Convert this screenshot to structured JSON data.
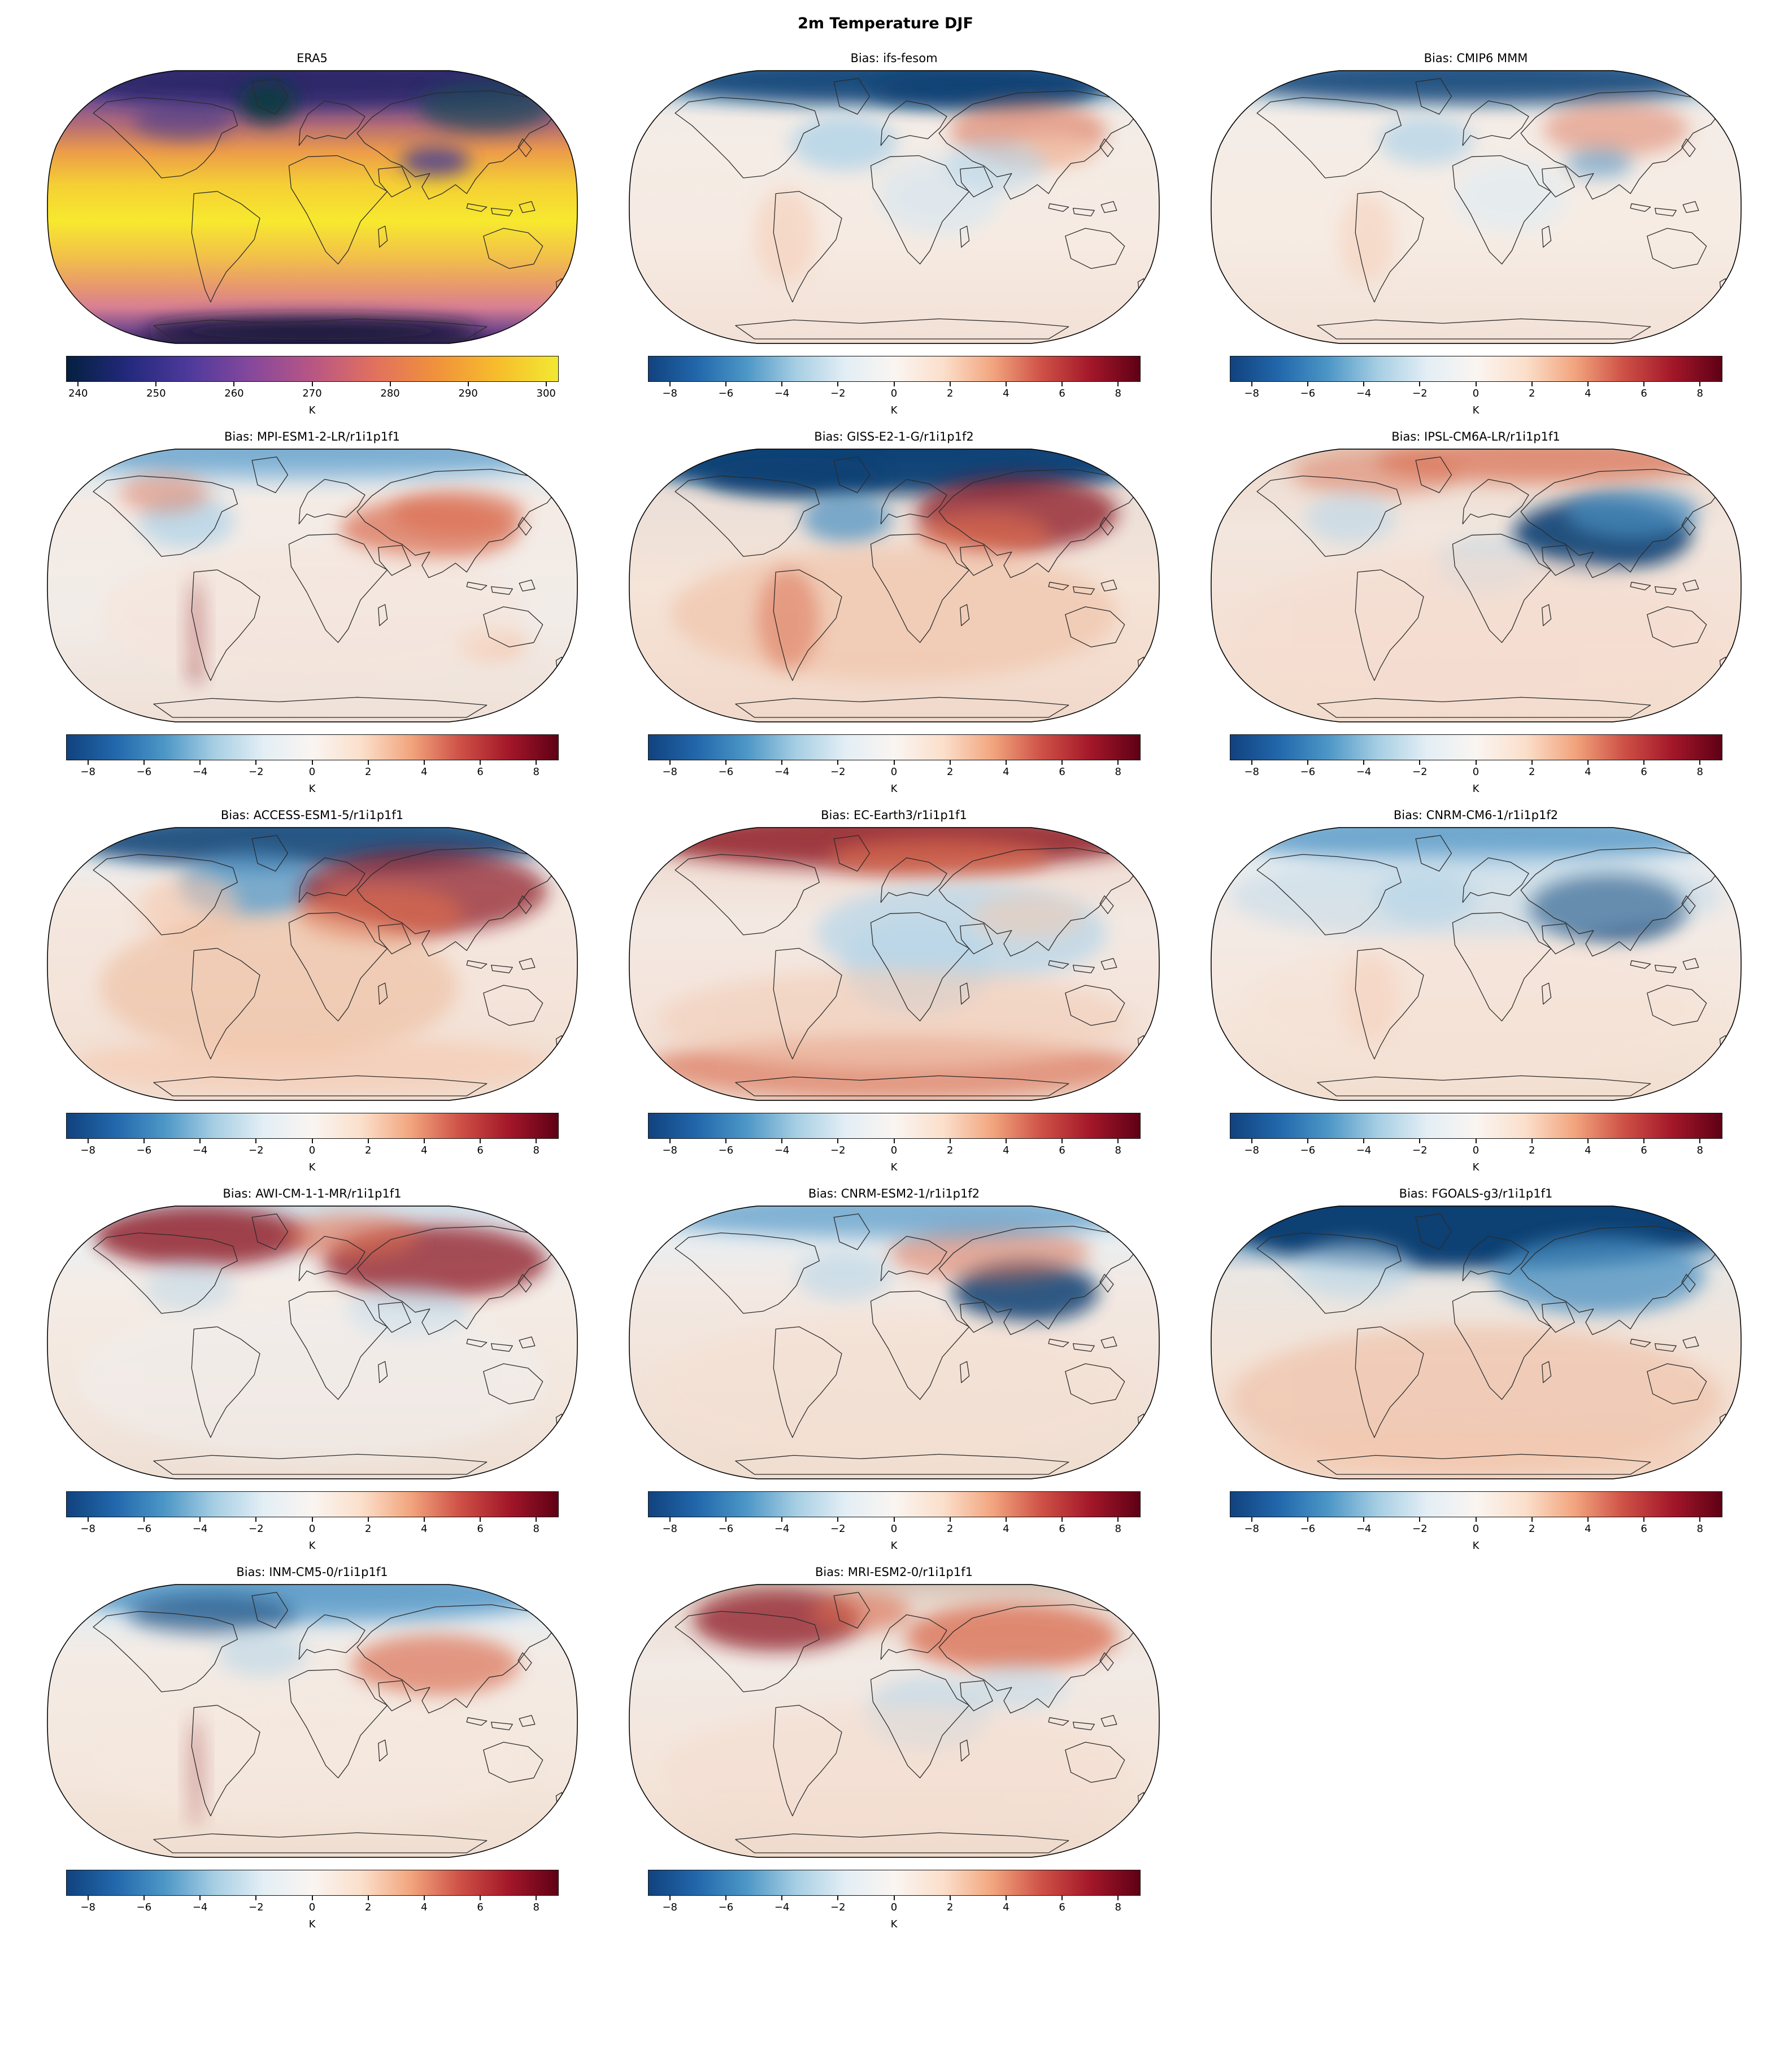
{
  "figure": {
    "title": "2m Temperature DJF"
  },
  "colormaps": {
    "thermal": [
      "#052040",
      "#23297c",
      "#4e3a9c",
      "#86489c",
      "#b85684",
      "#e1705f",
      "#f0913c",
      "#f7bc2c",
      "#f2e932"
    ],
    "rdbu_r": [
      "#11427e",
      "#2268ac",
      "#4d97c7",
      "#a6cee3",
      "#e3eef5",
      "#faf5f1",
      "#fbdfcb",
      "#f2a57e",
      "#ce5146",
      "#a31729",
      "#5f0015"
    ]
  },
  "panels": [
    {
      "id": "era5",
      "title": "ERA5",
      "type": "reference",
      "colorbar": {
        "colormap": "thermal",
        "ticks": [
          "240",
          "250",
          "260",
          "270",
          "280",
          "290",
          "300"
        ],
        "label": "K",
        "inset_pct": 2.5
      }
    },
    {
      "id": "ifs-fesom",
      "title": "Bias: ifs-fesom",
      "type": "bias",
      "colorbar": {
        "colormap": "rdbu_r",
        "ticks": [
          "−8",
          "−6",
          "−4",
          "−2",
          "0",
          "2",
          "4",
          "6",
          "8"
        ],
        "label": "K",
        "inset_pct": 4.5
      }
    },
    {
      "id": "cmip6-mmm",
      "title": "Bias: CMIP6 MMM",
      "type": "bias",
      "colorbar": {
        "colormap": "rdbu_r",
        "ticks": [
          "−8",
          "−6",
          "−4",
          "−2",
          "0",
          "2",
          "4",
          "6",
          "8"
        ],
        "label": "K",
        "inset_pct": 4.5
      }
    },
    {
      "id": "mpi",
      "title": "Bias: MPI-ESM1-2-LR/r1i1p1f1",
      "type": "bias",
      "colorbar": {
        "colormap": "rdbu_r",
        "ticks": [
          "−8",
          "−6",
          "−4",
          "−2",
          "0",
          "2",
          "4",
          "6",
          "8"
        ],
        "label": "K",
        "inset_pct": 4.5
      }
    },
    {
      "id": "giss",
      "title": "Bias: GISS-E2-1-G/r1i1p1f2",
      "type": "bias",
      "colorbar": {
        "colormap": "rdbu_r",
        "ticks": [
          "−8",
          "−6",
          "−4",
          "−2",
          "0",
          "2",
          "4",
          "6",
          "8"
        ],
        "label": "K",
        "inset_pct": 4.5
      }
    },
    {
      "id": "ipsl",
      "title": "Bias: IPSL-CM6A-LR/r1i1p1f1",
      "type": "bias",
      "colorbar": {
        "colormap": "rdbu_r",
        "ticks": [
          "−8",
          "−6",
          "−4",
          "−2",
          "0",
          "2",
          "4",
          "6",
          "8"
        ],
        "label": "K",
        "inset_pct": 4.5
      }
    },
    {
      "id": "access",
      "title": "Bias: ACCESS-ESM1-5/r1i1p1f1",
      "type": "bias",
      "colorbar": {
        "colormap": "rdbu_r",
        "ticks": [
          "−8",
          "−6",
          "−4",
          "−2",
          "0",
          "2",
          "4",
          "6",
          "8"
        ],
        "label": "K",
        "inset_pct": 4.5
      }
    },
    {
      "id": "ecearth",
      "title": "Bias: EC-Earth3/r1i1p1f1",
      "type": "bias",
      "colorbar": {
        "colormap": "rdbu_r",
        "ticks": [
          "−8",
          "−6",
          "−4",
          "−2",
          "0",
          "2",
          "4",
          "6",
          "8"
        ],
        "label": "K",
        "inset_pct": 4.5
      }
    },
    {
      "id": "cnrm-cm6",
      "title": "Bias: CNRM-CM6-1/r1i1p1f2",
      "type": "bias",
      "colorbar": {
        "colormap": "rdbu_r",
        "ticks": [
          "−8",
          "−6",
          "−4",
          "−2",
          "0",
          "2",
          "4",
          "6",
          "8"
        ],
        "label": "K",
        "inset_pct": 4.5
      }
    },
    {
      "id": "awi",
      "title": "Bias: AWI-CM-1-1-MR/r1i1p1f1",
      "type": "bias",
      "colorbar": {
        "colormap": "rdbu_r",
        "ticks": [
          "−8",
          "−6",
          "−4",
          "−2",
          "0",
          "2",
          "4",
          "6",
          "8"
        ],
        "label": "K",
        "inset_pct": 4.5
      }
    },
    {
      "id": "cnrm-esm2",
      "title": "Bias: CNRM-ESM2-1/r1i1p1f2",
      "type": "bias",
      "colorbar": {
        "colormap": "rdbu_r",
        "ticks": [
          "−8",
          "−6",
          "−4",
          "−2",
          "0",
          "2",
          "4",
          "6",
          "8"
        ],
        "label": "K",
        "inset_pct": 4.5
      }
    },
    {
      "id": "fgoals",
      "title": "Bias: FGOALS-g3/r1i1p1f1",
      "type": "bias",
      "colorbar": {
        "colormap": "rdbu_r",
        "ticks": [
          "−8",
          "−6",
          "−4",
          "−2",
          "0",
          "2",
          "4",
          "6",
          "8"
        ],
        "label": "K",
        "inset_pct": 4.5
      }
    },
    {
      "id": "inm",
      "title": "Bias: INM-CM5-0/r1i1p1f1",
      "type": "bias",
      "colorbar": {
        "colormap": "rdbu_r",
        "ticks": [
          "−8",
          "−6",
          "−4",
          "−2",
          "0",
          "2",
          "4",
          "6",
          "8"
        ],
        "label": "K",
        "inset_pct": 4.5
      }
    },
    {
      "id": "mri",
      "title": "Bias: MRI-ESM2-0/r1i1p1f1",
      "type": "bias",
      "colorbar": {
        "colormap": "rdbu_r",
        "ticks": [
          "−8",
          "−6",
          "−4",
          "−2",
          "0",
          "2",
          "4",
          "6",
          "8"
        ],
        "label": "K",
        "inset_pct": 4.5
      }
    }
  ],
  "chart_data": {
    "type": "heatmap",
    "title": "2m Temperature DJF",
    "layout": "5 rows x 3 columns of Robinson-projection world maps (last row has 2 maps), each with its own horizontal colorbar below",
    "projection": "Robinson",
    "reference_panel": {
      "title": "ERA5",
      "variable": "2 m temperature, DJF climatology",
      "units": "K",
      "colorbar_ticks": [
        240,
        250,
        260,
        270,
        280,
        290,
        300
      ],
      "colorbar_range": [
        240,
        300
      ],
      "colormap": "thermal (dark navy → violet → magenta → orange → yellow)"
    },
    "bias_panels": {
      "units": "K",
      "colorbar_ticks": [
        -8,
        -6,
        -4,
        -2,
        0,
        2,
        4,
        6,
        8
      ],
      "colorbar_range": [
        -9,
        9
      ],
      "colormap": "RdBu_r (blue = cold bias, red = warm bias, white ≈ 0)",
      "models_in_order": [
        "ifs-fesom",
        "CMIP6 MMM",
        "MPI-ESM1-2-LR/r1i1p1f1",
        "GISS-E2-1-G/r1i1p1f2",
        "IPSL-CM6A-LR/r1i1p1f1",
        "ACCESS-ESM1-5/r1i1p1f1",
        "EC-Earth3/r1i1p1f1",
        "CNRM-CM6-1/r1i1p1f2",
        "AWI-CM-1-1-MR/r1i1p1f1",
        "CNRM-ESM2-1/r1i1p1f2",
        "FGOALS-g3/r1i1p1f1",
        "INM-CM5-0/r1i1p1f1",
        "MRI-ESM2-0/r1i1p1f1"
      ],
      "qualitative_patterns": {
        "ifs-fesom": "strong cold bias over Arctic ocean band; warm bias over Siberia/central Asia; weak biases elsewhere",
        "CMIP6 MMM": "cold Arctic band; mild warm Siberia; near-neutral oceans",
        "MPI-ESM1-2-LR/r1i1p1f1": "warm central Asia/Himalaya; cold patches North America; warm Andes strip",
        "GISS-E2-1-G/r1i1p1f2": "very cold Arctic; strong warm Siberia; broad warm tropics",
        "IPSL-CM6A-LR/r1i1p1f1": "strong cold central/east Asia; warm Arctic Russia; warm oceans",
        "ACCESS-ESM1-5/r1i1p1f1": "cold Arctic/North Atlantic; strong warm Eurasia; warm southern oceans",
        "EC-Earth3/r1i1p1f1": "warm Arctic band; cold Africa/Asia land; warm band near Antarctica",
        "CNRM-CM6-1/r1i1p1f2": "cold northern hemisphere, very cold Tibet/Mongolia; mild warm south",
        "AWI-CM-1-1-MR/r1i1p1f1": "strong warm Arctic North America and Siberia; weak ocean biases",
        "CNRM-ESM2-1/r1i1p1f2": "cold Tibetan plateau; mild warm Siberia; warm southern oceans",
        "FGOALS-g3/r1i1p1f1": "very strong cold bias across whole Arctic/high north; warm southern hemisphere",
        "INM-CM5-0/r1i1p1f1": "cold Arctic band; warm central Asia; warm Andes strip",
        "MRI-ESM2-0/r1i1p1f1": "warm northern North America and Russia; cold patches over Africa/Asia"
      }
    }
  }
}
